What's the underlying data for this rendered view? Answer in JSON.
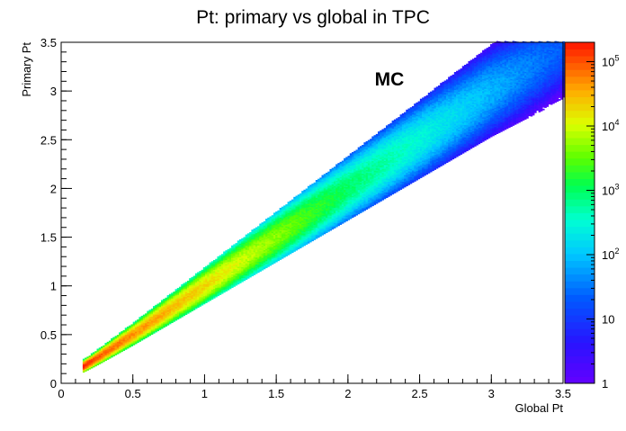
{
  "chart_data": {
    "type": "heatmap",
    "title": "Pt: primary vs global in TPC",
    "xlabel": "Global Pt",
    "ylabel": "Primary Pt",
    "xlim": [
      0,
      3.5
    ],
    "ylim": [
      0,
      3.5
    ],
    "x_ticks": [
      0,
      0.5,
      1,
      1.5,
      2,
      2.5,
      3,
      3.5
    ],
    "x_tick_labels": [
      "0",
      "0.5",
      "1",
      "1.5",
      "2",
      "2.5",
      "3",
      "3.5"
    ],
    "y_ticks": [
      0,
      0.5,
      1,
      1.5,
      2,
      2.5,
      3,
      3.5
    ],
    "y_tick_labels": [
      "0",
      "0.5",
      "1",
      "1.5",
      "2",
      "2.5",
      "3",
      "3.5"
    ],
    "annotation": "MC",
    "colorbar": {
      "scale": "log",
      "range": [
        1,
        200000
      ],
      "tick_labels": [
        {
          "value": 1,
          "base": "1",
          "exp": ""
        },
        {
          "value": 10,
          "base": "10",
          "exp": ""
        },
        {
          "value": 100,
          "base": "10",
          "exp": "2"
        },
        {
          "value": 1000,
          "base": "10",
          "exp": "3"
        },
        {
          "value": 10000,
          "base": "10",
          "exp": "4"
        },
        {
          "value": 100000,
          "base": "10",
          "exp": "5"
        }
      ]
    },
    "ridge": {
      "x": [
        0.15,
        0.25,
        0.5,
        1.0,
        1.5,
        2.0,
        2.5,
        3.0,
        3.5
      ],
      "y": [
        0.17,
        0.26,
        0.5,
        1.0,
        1.5,
        2.0,
        2.5,
        3.0,
        3.45
      ],
      "peak_counts": [
        200000,
        100000,
        50000,
        20000,
        5000,
        1000,
        300,
        80,
        20
      ]
    },
    "x_range_of_entries": [
      0.15,
      3.5
    ],
    "grid": false,
    "legend": "none"
  }
}
